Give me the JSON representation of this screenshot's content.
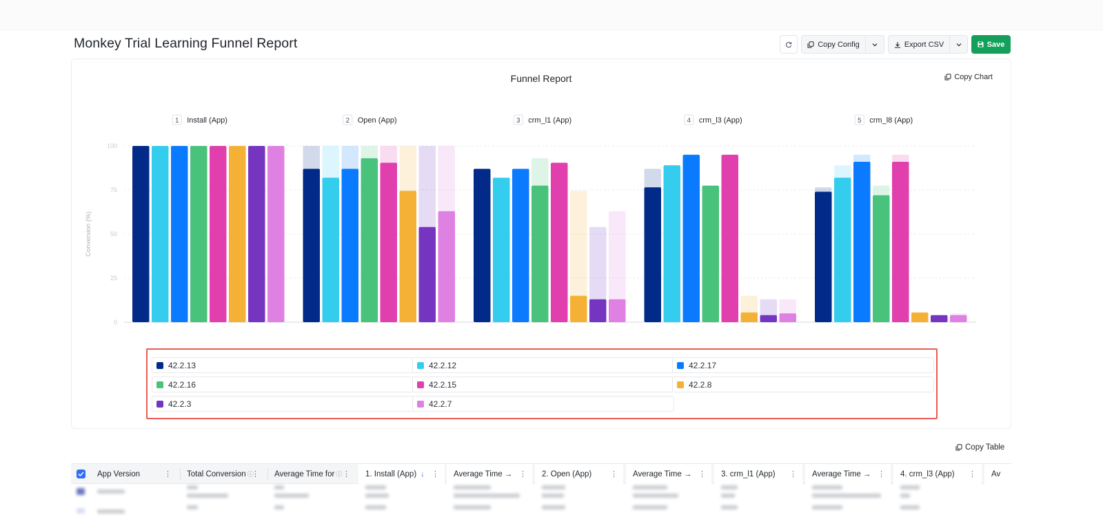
{
  "page": {
    "title": "Monkey Trial Learning Funnel Report"
  },
  "toolbar": {
    "refresh_icon": "refresh-icon",
    "copy_config_label": "Copy Config",
    "export_csv_label": "Export CSV",
    "save_label": "Save"
  },
  "chart_card": {
    "copy_chart_label": "Copy Chart"
  },
  "chart_data": {
    "type": "bar",
    "title": "Funnel Report",
    "ylabel": "Conversion (%)",
    "ylim": [
      0,
      100
    ],
    "yticks": [
      "100",
      "75",
      "50",
      "25",
      "0"
    ],
    "steps": [
      {
        "num": "1",
        "name": "Install (App)"
      },
      {
        "num": "2",
        "name": "Open (App)"
      },
      {
        "num": "3",
        "name": "crm_l1 (App)"
      },
      {
        "num": "4",
        "name": "crm_l3 (App)"
      },
      {
        "num": "5",
        "name": "crm_l8 (App)"
      }
    ],
    "series": [
      {
        "name": "42.2.13",
        "color": "#022a88",
        "values": [
          100,
          87,
          87,
          76.5,
          74
        ]
      },
      {
        "name": "42.2.12",
        "color": "#35cdee",
        "values": [
          100,
          82,
          82,
          89,
          82
        ]
      },
      {
        "name": "42.2.17",
        "color": "#0a7bff",
        "values": [
          100,
          87,
          87,
          95,
          91
        ]
      },
      {
        "name": "42.2.16",
        "color": "#49c27c",
        "values": [
          100,
          93,
          77.5,
          77.5,
          72
        ]
      },
      {
        "name": "42.2.15",
        "color": "#e03fad",
        "values": [
          100,
          90.5,
          90.5,
          95,
          91
        ]
      },
      {
        "name": "42.2.8",
        "color": "#f5b135",
        "values": [
          100,
          74.5,
          15,
          5.5,
          5.5
        ]
      },
      {
        "name": "42.2.3",
        "color": "#7535c1",
        "values": [
          100,
          54,
          13,
          4,
          4
        ]
      },
      {
        "name": "42.2.7",
        "color": "#df80e3",
        "values": [
          100,
          63,
          13,
          5,
          4
        ]
      }
    ]
  },
  "legend": {
    "items": [
      {
        "label": "42.2.13",
        "color": "#022a88"
      },
      {
        "label": "42.2.12",
        "color": "#35cdee"
      },
      {
        "label": "42.2.17",
        "color": "#0a7bff"
      },
      {
        "label": "42.2.16",
        "color": "#49c27c"
      },
      {
        "label": "42.2.15",
        "color": "#e03fad"
      },
      {
        "label": "42.2.8",
        "color": "#f5b135"
      },
      {
        "label": "42.2.3",
        "color": "#7535c1"
      },
      {
        "label": "42.2.7",
        "color": "#df80e3"
      }
    ]
  },
  "table": {
    "copy_table_label": "Copy Table",
    "columns": [
      "App Version",
      "Total Conversion",
      "Average Time for",
      "1. Install (App)",
      "Average Time →",
      "2. Open (App)",
      "Average Time →",
      "3. crm_l1 (App)",
      "Average Time →",
      "4. crm_l3 (App)",
      "Av"
    ]
  }
}
